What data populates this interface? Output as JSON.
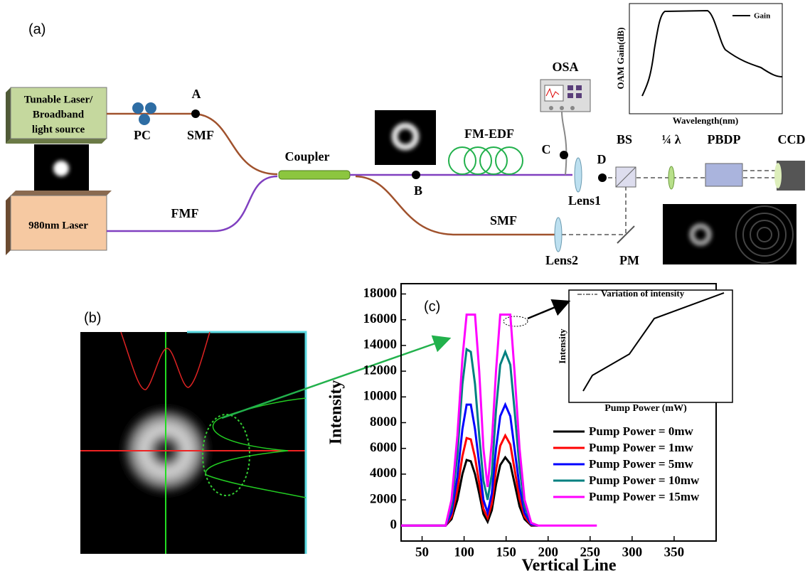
{
  "panel_labels": [
    "(a)",
    "(b)",
    "(c)"
  ],
  "diagram": {
    "tunable_laser": [
      "Tunable Laser/",
      "Broadband",
      "light source"
    ],
    "pump_laser": "980nm Laser",
    "pc": "PC",
    "point_a": "A",
    "point_b": "B",
    "point_c": "C",
    "point_d": "D",
    "smf_top": "SMF",
    "fmf": "FMF",
    "coupler": "Coupler",
    "fm_edf": "FM-EDF",
    "osa": "OSA",
    "lens1": "Lens1",
    "lens2": "Lens2",
    "bs": "BS",
    "quarter_wave": "¼ λ",
    "pbdp": "PBDP",
    "ccd": "CCD",
    "pm": "PM",
    "smf_bottom": "SMF",
    "gain_inset": {
      "legend": "Gain",
      "x_label": "Wavelength(nm)",
      "y_label": "OAM Gain(dB)"
    }
  },
  "chart_data": {
    "type": "line",
    "x_label": "Vertical Line",
    "y_label": "Intensity",
    "xlim": [
      25,
      400
    ],
    "ylim": [
      -1200,
      18800
    ],
    "xticks": [
      50,
      100,
      150,
      200,
      250,
      300,
      350
    ],
    "yticks": [
      0,
      2000,
      4000,
      6000,
      8000,
      10000,
      12000,
      14000,
      16000,
      18000
    ],
    "x": [
      25,
      78,
      85,
      92,
      98,
      103,
      108,
      113,
      118,
      123,
      128,
      133,
      138,
      143,
      149,
      155,
      160,
      166,
      172,
      180,
      188,
      258
    ],
    "series": [
      {
        "name": "Pump Power = 0mw",
        "color": "#000000",
        "values": [
          0,
          0,
          500,
          2000,
          4000,
          5100,
          5000,
          4000,
          2500,
          900,
          300,
          1200,
          3200,
          4700,
          5300,
          4800,
          3300,
          1500,
          500,
          0,
          0,
          null
        ]
      },
      {
        "name": "Pump Power = 1mw",
        "color": "#ff0000",
        "values": [
          0,
          0,
          700,
          2800,
          5400,
          6800,
          6700,
          5300,
          3300,
          1300,
          600,
          1700,
          4300,
          6200,
          7000,
          6300,
          4400,
          2100,
          700,
          50,
          0,
          null
        ]
      },
      {
        "name": "Pump Power = 5mw",
        "color": "#0000ff",
        "values": [
          0,
          0,
          1000,
          3800,
          7500,
          9400,
          9400,
          7500,
          4800,
          2000,
          1000,
          2500,
          6000,
          8500,
          9400,
          8500,
          6000,
          3000,
          1000,
          100,
          0,
          null
        ]
      },
      {
        "name": "Pump Power = 10mw",
        "color": "#008080",
        "values": [
          0,
          0,
          1500,
          5500,
          11000,
          13700,
          13500,
          11000,
          7000,
          3500,
          2000,
          4000,
          9000,
          12500,
          13500,
          12500,
          9000,
          4500,
          1500,
          200,
          0,
          null
        ]
      },
      {
        "name": "Pump Power = 15mw",
        "color": "#ff00ff",
        "values": [
          0,
          0,
          2000,
          7000,
          13000,
          16400,
          16400,
          16400,
          12000,
          6000,
          3000,
          6500,
          12000,
          16400,
          16400,
          16400,
          12000,
          6000,
          2000,
          200,
          0,
          0
        ]
      }
    ],
    "inset": {
      "legend": "Variation of intensity",
      "x_label": "Pump Power (mW)",
      "y_label": "Intensity"
    }
  }
}
